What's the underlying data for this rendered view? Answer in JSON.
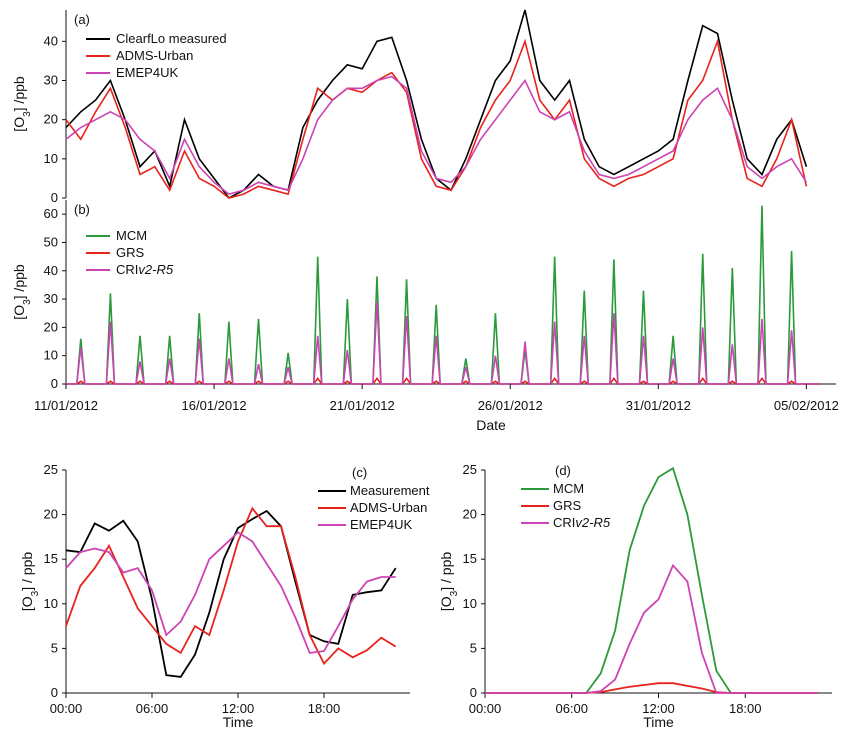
{
  "chart_data": [
    {
      "id": "a",
      "type": "line",
      "panel_label": "(a)",
      "ylabel": "[O3] /ppb",
      "ylabel_base": "[O",
      "ylabel_sub": "3",
      "ylabel_rest": "] /ppb",
      "xlabel": "",
      "ylim": [
        0,
        48
      ],
      "yticks": [
        0,
        10,
        20,
        30,
        40
      ],
      "xlim": [
        "2012-01-11",
        "2012-02-06"
      ],
      "legend_position": "top-left",
      "colors": {
        "ClearfLo measured": "#000000",
        "ADMS-Urban": "#e8221c",
        "EMEP4UK": "#cc44b4"
      },
      "series": [
        {
          "name": "ClearfLo measured",
          "color": "#000000",
          "x": [
            "2012-01-11",
            "2012-01-11 12:00",
            "2012-01-12",
            "2012-01-12 12:00",
            "2012-01-13",
            "2012-01-13 12:00",
            "2012-01-14",
            "2012-01-14 12:00",
            "2012-01-15",
            "2012-01-15 12:00",
            "2012-01-16",
            "2012-01-16 12:00",
            "2012-01-17",
            "2012-01-17 12:00",
            "2012-01-18",
            "2012-01-18 12:00",
            "2012-01-19",
            "2012-01-19 12:00",
            "2012-01-20",
            "2012-01-20 12:00",
            "2012-01-21",
            "2012-01-21 12:00",
            "2012-01-22",
            "2012-01-22 12:00",
            "2012-01-23",
            "2012-01-23 12:00",
            "2012-01-24",
            "2012-01-24 12:00",
            "2012-01-25",
            "2012-01-25 12:00",
            "2012-01-26",
            "2012-01-26 12:00",
            "2012-01-27",
            "2012-01-27 12:00",
            "2012-01-28",
            "2012-01-28 12:00",
            "2012-01-29",
            "2012-01-29 12:00",
            "2012-01-30",
            "2012-01-30 12:00",
            "2012-01-31",
            "2012-01-31 12:00",
            "2012-02-01",
            "2012-02-01 12:00",
            "2012-02-02",
            "2012-02-02 12:00",
            "2012-02-03",
            "2012-02-03 12:00",
            "2012-02-04",
            "2012-02-04 12:00",
            "2012-02-05"
          ],
          "values": [
            18,
            22,
            25,
            30,
            20,
            8,
            12,
            3,
            20,
            10,
            5,
            0,
            2,
            6,
            3,
            2,
            18,
            25,
            30,
            34,
            33,
            40,
            41,
            30,
            15,
            5,
            2,
            10,
            20,
            30,
            35,
            48,
            30,
            25,
            30,
            15,
            8,
            6,
            8,
            10,
            12,
            15,
            30,
            44,
            42,
            25,
            10,
            6,
            15,
            20,
            8
          ]
        },
        {
          "name": "ADMS-Urban",
          "color": "#e8221c",
          "x": [
            "2012-01-11",
            "2012-01-11 12:00",
            "2012-01-12",
            "2012-01-12 12:00",
            "2012-01-13",
            "2012-01-13 12:00",
            "2012-01-14",
            "2012-01-14 12:00",
            "2012-01-15",
            "2012-01-15 12:00",
            "2012-01-16",
            "2012-01-16 12:00",
            "2012-01-17",
            "2012-01-17 12:00",
            "2012-01-18",
            "2012-01-18 12:00",
            "2012-01-19",
            "2012-01-19 12:00",
            "2012-01-20",
            "2012-01-20 12:00",
            "2012-01-21",
            "2012-01-21 12:00",
            "2012-01-22",
            "2012-01-22 12:00",
            "2012-01-23",
            "2012-01-23 12:00",
            "2012-01-24",
            "2012-01-24 12:00",
            "2012-01-25",
            "2012-01-25 12:00",
            "2012-01-26",
            "2012-01-26 12:00",
            "2012-01-27",
            "2012-01-27 12:00",
            "2012-01-28",
            "2012-01-28 12:00",
            "2012-01-29",
            "2012-01-29 12:00",
            "2012-01-30",
            "2012-01-30 12:00",
            "2012-01-31",
            "2012-01-31 12:00",
            "2012-02-01",
            "2012-02-01 12:00",
            "2012-02-02",
            "2012-02-02 12:00",
            "2012-02-03",
            "2012-02-03 12:00",
            "2012-02-04",
            "2012-02-04 12:00",
            "2012-02-05"
          ],
          "values": [
            20,
            15,
            22,
            28,
            18,
            6,
            8,
            2,
            12,
            5,
            3,
            0,
            1,
            3,
            2,
            1,
            15,
            28,
            25,
            28,
            27,
            30,
            32,
            27,
            10,
            3,
            2,
            8,
            18,
            25,
            30,
            40,
            25,
            20,
            25,
            10,
            5,
            3,
            5,
            6,
            8,
            10,
            25,
            30,
            40,
            20,
            5,
            3,
            10,
            20,
            3
          ]
        },
        {
          "name": "EMEP4UK",
          "color": "#cc44b4",
          "x": [
            "2012-01-11",
            "2012-01-11 12:00",
            "2012-01-12",
            "2012-01-12 12:00",
            "2012-01-13",
            "2012-01-13 12:00",
            "2012-01-14",
            "2012-01-14 12:00",
            "2012-01-15",
            "2012-01-15 12:00",
            "2012-01-16",
            "2012-01-16 12:00",
            "2012-01-17",
            "2012-01-17 12:00",
            "2012-01-18",
            "2012-01-18 12:00",
            "2012-01-19",
            "2012-01-19 12:00",
            "2012-01-20",
            "2012-01-20 12:00",
            "2012-01-21",
            "2012-01-21 12:00",
            "2012-01-22",
            "2012-01-22 12:00",
            "2012-01-23",
            "2012-01-23 12:00",
            "2012-01-24",
            "2012-01-24 12:00",
            "2012-01-25",
            "2012-01-25 12:00",
            "2012-01-26",
            "2012-01-26 12:00",
            "2012-01-27",
            "2012-01-27 12:00",
            "2012-01-28",
            "2012-01-28 12:00",
            "2012-01-29",
            "2012-01-29 12:00",
            "2012-01-30",
            "2012-01-30 12:00",
            "2012-01-31",
            "2012-01-31 12:00",
            "2012-02-01",
            "2012-02-01 12:00",
            "2012-02-02",
            "2012-02-02 12:00",
            "2012-02-03",
            "2012-02-03 12:00",
            "2012-02-04",
            "2012-02-04 12:00",
            "2012-02-05"
          ],
          "values": [
            15,
            18,
            20,
            22,
            20,
            15,
            12,
            5,
            15,
            8,
            4,
            1,
            2,
            4,
            3,
            2,
            10,
            20,
            25,
            28,
            28,
            30,
            31,
            28,
            12,
            5,
            4,
            8,
            15,
            20,
            25,
            30,
            22,
            20,
            22,
            12,
            6,
            5,
            6,
            8,
            10,
            12,
            20,
            25,
            28,
            20,
            8,
            5,
            8,
            10,
            4
          ]
        }
      ]
    },
    {
      "id": "b",
      "type": "line",
      "panel_label": "(b)",
      "ylabel": "[O3] /ppb",
      "ylabel_base": "[O",
      "ylabel_sub": "3",
      "ylabel_rest": "] /ppb",
      "xlabel": "Date",
      "ylim": [
        0,
        65
      ],
      "yticks": [
        0,
        10,
        20,
        30,
        40,
        50,
        60
      ],
      "xlim": [
        "2012-01-11",
        "2012-02-06"
      ],
      "xtick_labels": [
        "11/01/2012",
        "16/01/2012",
        "21/01/2012",
        "26/01/2012",
        "31/01/2012",
        "05/02/2012"
      ],
      "legend_position": "top-left",
      "colors": {
        "MCM": "#2a9a3a",
        "GRS": "#e8221c",
        "CRIv2-R5": "#cc44b4"
      },
      "daily_peak_days": [
        "2012-01-11",
        "2012-01-12",
        "2012-01-13",
        "2012-01-14",
        "2012-01-15",
        "2012-01-16",
        "2012-01-17",
        "2012-01-18",
        "2012-01-19",
        "2012-01-20",
        "2012-01-21",
        "2012-01-22",
        "2012-01-23",
        "2012-01-24",
        "2012-01-25",
        "2012-01-26",
        "2012-01-27",
        "2012-01-28",
        "2012-01-29",
        "2012-01-30",
        "2012-01-31",
        "2012-02-01",
        "2012-02-02",
        "2012-02-03",
        "2012-02-04"
      ],
      "series": [
        {
          "name": "MCM",
          "color": "#2a9a3a",
          "daily_peaks": [
            16,
            32,
            17,
            17,
            25,
            22,
            23,
            11,
            45,
            30,
            38,
            37,
            28,
            9,
            25,
            12,
            45,
            33,
            44,
            33,
            17,
            46,
            41,
            63,
            47
          ]
        },
        {
          "name": "GRS",
          "color": "#e8221c",
          "daily_peaks": [
            1,
            1,
            1,
            1,
            1,
            1,
            1,
            1,
            2,
            1,
            2,
            2,
            1,
            1,
            1,
            1,
            2,
            1,
            2,
            1,
            1,
            2,
            1,
            2,
            1
          ]
        },
        {
          "name": "CRIv2-R5",
          "color": "#cc44b4",
          "daily_peaks": [
            13,
            22,
            8,
            9,
            16,
            9,
            7,
            6,
            17,
            12,
            29,
            24,
            17,
            6,
            10,
            15,
            22,
            17,
            25,
            17,
            9,
            20,
            14,
            23,
            19
          ]
        }
      ]
    },
    {
      "id": "c",
      "type": "line",
      "panel_label": "(c)",
      "xlabel": "Time",
      "ylabel": "[O3] / ppb",
      "ylabel_base": "[O",
      "ylabel_sub": "3",
      "ylabel_rest": "] / ppb",
      "ylim": [
        0,
        25
      ],
      "yticks": [
        0,
        5,
        10,
        15,
        20,
        25
      ],
      "xlim": [
        0,
        24
      ],
      "xticks": [
        0,
        6,
        12,
        18
      ],
      "xtick_labels": [
        "00:00",
        "06:00",
        "12:00",
        "18:00"
      ],
      "legend_position": "top-right",
      "colors": {
        "Measurement": "#000000",
        "ADMS-Urban": "#e8221c",
        "EMEP4UK": "#cc44b4"
      },
      "series": [
        {
          "name": "Measurement",
          "color": "#000000",
          "x": [
            0,
            1,
            2,
            3,
            4,
            5,
            6,
            7,
            8,
            9,
            10,
            11,
            12,
            13,
            14,
            15,
            16,
            17,
            18,
            19,
            20,
            21,
            22,
            23
          ],
          "values": [
            16,
            15.8,
            19,
            18.2,
            19.3,
            17,
            10.5,
            2,
            1.8,
            4.3,
            9,
            15,
            18.5,
            19.5,
            20.4,
            18.7,
            12.5,
            6.5,
            5.8,
            5.5,
            11,
            11.3,
            11.5,
            14
          ]
        },
        {
          "name": "ADMS-Urban",
          "color": "#e8221c",
          "x": [
            0,
            1,
            2,
            3,
            4,
            5,
            6,
            7,
            8,
            9,
            10,
            11,
            12,
            13,
            14,
            15,
            16,
            17,
            18,
            19,
            20,
            21,
            22,
            23
          ],
          "values": [
            7.5,
            12,
            14,
            16.5,
            13,
            9.5,
            7.5,
            5.5,
            4.5,
            7.5,
            6.5,
            11.5,
            17,
            20.7,
            18.7,
            18.7,
            13,
            6.5,
            3.3,
            5,
            4,
            4.8,
            6.2,
            5.2
          ]
        },
        {
          "name": "EMEP4UK",
          "color": "#cc44b4",
          "x": [
            0,
            1,
            2,
            3,
            4,
            5,
            6,
            7,
            8,
            9,
            10,
            11,
            12,
            13,
            14,
            15,
            16,
            17,
            18,
            19,
            20,
            21,
            22,
            23
          ],
          "values": [
            14,
            15.8,
            16.2,
            15.8,
            13.5,
            14,
            11.5,
            6.5,
            8,
            11,
            15,
            16.5,
            18,
            17,
            14.5,
            12,
            8.5,
            4.5,
            4.7,
            7.5,
            10.5,
            12.5,
            13,
            13
          ]
        }
      ]
    },
    {
      "id": "d",
      "type": "line",
      "panel_label": "(d)",
      "xlabel": "Time",
      "ylabel": "[O3] / ppb",
      "ylabel_base": "[O",
      "ylabel_sub": "3",
      "ylabel_rest": "] / ppb",
      "ylim": [
        0,
        25
      ],
      "yticks": [
        0,
        5,
        10,
        15,
        20,
        25
      ],
      "xlim": [
        0,
        24
      ],
      "xticks": [
        0,
        6,
        12,
        18
      ],
      "xtick_labels": [
        "00:00",
        "06:00",
        "12:00",
        "18:00"
      ],
      "legend_position": "top-right",
      "colors": {
        "MCM": "#2a9a3a",
        "GRS": "#e8221c",
        "CRIv2-R5": "#cc44b4"
      },
      "series": [
        {
          "name": "MCM",
          "color": "#2a9a3a",
          "x": [
            0,
            1,
            2,
            3,
            4,
            5,
            6,
            7,
            8,
            9,
            10,
            11,
            12,
            13,
            14,
            15,
            16,
            17,
            18,
            19,
            20,
            21,
            22,
            23
          ],
          "values": [
            0,
            0,
            0,
            0,
            0,
            0,
            0,
            0,
            2.2,
            7,
            16,
            21,
            24.2,
            25.2,
            20,
            11,
            2.5,
            0,
            0,
            0,
            0,
            0,
            0,
            0
          ]
        },
        {
          "name": "GRS",
          "color": "#e8221c",
          "x": [
            0,
            1,
            2,
            3,
            4,
            5,
            6,
            7,
            8,
            9,
            10,
            11,
            12,
            13,
            14,
            15,
            16,
            17,
            18,
            19,
            20,
            21,
            22,
            23
          ],
          "values": [
            0,
            0,
            0,
            0,
            0,
            0,
            0,
            0,
            0.1,
            0.4,
            0.7,
            0.9,
            1.1,
            1.1,
            0.8,
            0.5,
            0.1,
            0,
            0,
            0,
            0,
            0,
            0,
            0
          ]
        },
        {
          "name": "CRIv2-R5",
          "color": "#cc44b4",
          "x": [
            0,
            1,
            2,
            3,
            4,
            5,
            6,
            7,
            8,
            9,
            10,
            11,
            12,
            13,
            14,
            15,
            16,
            17,
            18,
            19,
            20,
            21,
            22,
            23
          ],
          "values": [
            0,
            0,
            0,
            0,
            0,
            0,
            0,
            0,
            0.2,
            1.5,
            5.5,
            9,
            10.5,
            14.3,
            12.5,
            4.5,
            0,
            0,
            0,
            0,
            0,
            0,
            0,
            0
          ]
        }
      ]
    }
  ]
}
